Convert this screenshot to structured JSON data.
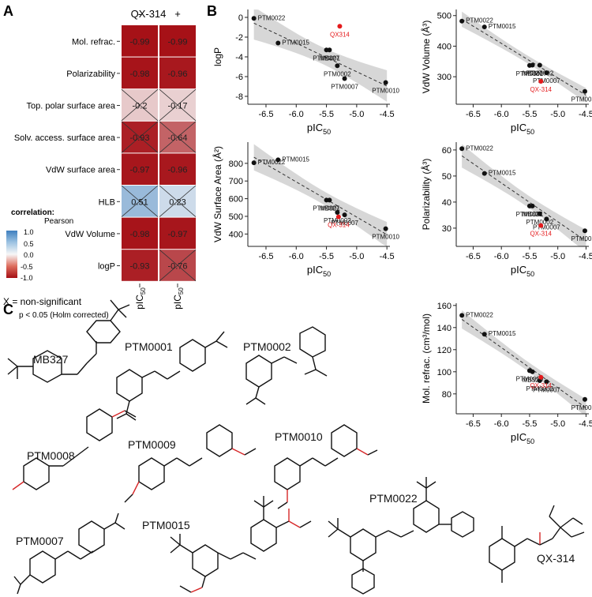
{
  "panels": {
    "a": "A",
    "b": "B",
    "c": "C"
  },
  "heatmap": {
    "header": "QX-314",
    "col_signs": [
      "-",
      "+"
    ],
    "rows": [
      "Mol. refrac.",
      "Polarizability",
      "Top. polar surface area",
      "Solv. access. surface area",
      "VdW surface area",
      "HLB",
      "VdW Volume",
      "logP"
    ],
    "values_minus": [
      "-0.99",
      "-0.98",
      "-0.2",
      "-0.93",
      "-0.97",
      "0.51",
      "-0.98",
      "-0.93"
    ],
    "values_plus": [
      "-0.99",
      "-0.96",
      "-0.17",
      "-0.64",
      "-0.96",
      "0.23",
      "-0.97",
      "-0.76"
    ],
    "nonsig_minus": [
      false,
      false,
      true,
      true,
      false,
      true,
      false,
      false
    ],
    "nonsig_plus": [
      false,
      false,
      true,
      true,
      false,
      true,
      false,
      true
    ],
    "xlabel": "pIC",
    "xlabel_sub": "50"
  },
  "legend": {
    "title": "correlation:",
    "subtitle": "Pearson",
    "ticks": [
      "1.0",
      "0.5",
      "0.0",
      "-0.5",
      "-1.0"
    ],
    "note": "X = non-significant",
    "pnote": "p < 0.05 (Holm corrected)"
  },
  "colors": {
    "neg": "#a50f15",
    "pos": "#4a86c2",
    "highlight": "#e41a1c",
    "ci": "#d3d3d3"
  },
  "chart_data": [
    {
      "type": "scatter",
      "ylabel": "logP",
      "xlabel": "pIC50",
      "xlim": [
        -6.8,
        -4.45
      ],
      "ylim": [
        -8.8,
        0.8
      ],
      "yticks": [
        "0",
        "-2",
        "-4",
        "-6",
        "-8"
      ],
      "xticks": [
        "-6.5",
        "-6.0",
        "-5.5",
        "-5.0",
        "-4.5"
      ],
      "points": [
        {
          "label": "PTM0022",
          "x": -6.7,
          "y": -0.1
        },
        {
          "label": "PTM0015",
          "x": -6.3,
          "y": -2.6
        },
        {
          "label": "PTM0001",
          "x": -5.5,
          "y": -3.3
        },
        {
          "label": "MB327",
          "x": -5.45,
          "y": -3.3
        },
        {
          "label": "PTM0002",
          "x": -5.32,
          "y": -4.9
        },
        {
          "label": "PTM0007",
          "x": -5.2,
          "y": -6.2
        },
        {
          "label": "PTM0010",
          "x": -4.52,
          "y": -6.6
        },
        {
          "label": "QX314",
          "x": -5.28,
          "y": -0.9,
          "highlight": true
        }
      ]
    },
    {
      "type": "scatter",
      "ylabel": "VdW Volume (Å³)",
      "xlabel": "pIC50",
      "xlim": [
        -6.8,
        -4.45
      ],
      "ylim": [
        210,
        520
      ],
      "yticks": [
        "500",
        "400",
        "300"
      ],
      "xticks": [
        "-6.5",
        "-6.0",
        "-5.5",
        "-5.0",
        "-4.5"
      ],
      "points": [
        {
          "label": "PTM0022",
          "x": -6.7,
          "y": 482
        },
        {
          "label": "PTM0015",
          "x": -6.3,
          "y": 463
        },
        {
          "label": "PTM0001",
          "x": -5.5,
          "y": 337
        },
        {
          "label": "PTM0002",
          "x": -5.32,
          "y": 338
        },
        {
          "label": "MB327",
          "x": -5.45,
          "y": 338
        },
        {
          "label": "PTM0007",
          "x": -5.2,
          "y": 313
        },
        {
          "label": "PTM0010",
          "x": -4.52,
          "y": 252
        },
        {
          "label": "QX-314",
          "x": -5.3,
          "y": 285,
          "highlight": true
        }
      ]
    },
    {
      "type": "scatter",
      "ylabel": "VdW Surface Area (Å²)",
      "xlabel": "pIC50",
      "xlim": [
        -6.8,
        -4.45
      ],
      "ylim": [
        330,
        920
      ],
      "yticks": [
        "800",
        "700",
        "600",
        "500",
        "400"
      ],
      "xticks": [
        "-6.5",
        "-6.0",
        "-5.5",
        "-5.0",
        "-4.5"
      ],
      "points": [
        {
          "label": "PTM0015",
          "x": -6.3,
          "y": 820
        },
        {
          "label": "PTM0022",
          "x": -6.7,
          "y": 803
        },
        {
          "label": "PTM0001",
          "x": -5.5,
          "y": 592
        },
        {
          "label": "MB327",
          "x": -5.45,
          "y": 592
        },
        {
          "label": "PTM0002",
          "x": -5.32,
          "y": 522
        },
        {
          "label": "PTM0007",
          "x": -5.2,
          "y": 508
        },
        {
          "label": "PTM0010",
          "x": -4.52,
          "y": 430
        },
        {
          "label": "QX-314",
          "x": -5.3,
          "y": 497,
          "highlight": true
        }
      ]
    },
    {
      "type": "scatter",
      "ylabel": "Polarizability (Å³)",
      "xlabel": "pIC50",
      "xlim": [
        -6.8,
        -4.45
      ],
      "ylim": [
        23,
        63
      ],
      "yticks": [
        "60",
        "50",
        "40",
        "30"
      ],
      "xticks": [
        "-6.5",
        "-6.0",
        "-5.5",
        "-5.0",
        "-4.5"
      ],
      "points": [
        {
          "label": "PTM0022",
          "x": -6.7,
          "y": 60.5
        },
        {
          "label": "PTM0015",
          "x": -6.3,
          "y": 51
        },
        {
          "label": "PTM0001",
          "x": -5.5,
          "y": 38.5
        },
        {
          "label": "MB327",
          "x": -5.45,
          "y": 38.5
        },
        {
          "label": "PTM0002",
          "x": -5.32,
          "y": 35.5
        },
        {
          "label": "PTM0007",
          "x": -5.2,
          "y": 33.5
        },
        {
          "label": "PTM0010",
          "x": -4.52,
          "y": 29
        },
        {
          "label": "QX-314",
          "x": -5.3,
          "y": 31,
          "highlight": true
        }
      ]
    },
    {
      "type": "scatter",
      "ylabel": "Mol. refrac. (cm³/mol)",
      "xlabel": "pIC50",
      "xlim": [
        -6.8,
        -4.45
      ],
      "ylim": [
        62,
        162
      ],
      "yticks": [
        "160",
        "140",
        "120",
        "100",
        "80"
      ],
      "xticks": [
        "-6.5",
        "-6.0",
        "-5.5",
        "-5.0",
        "-4.5"
      ],
      "points": [
        {
          "label": "PTM0022",
          "x": -6.7,
          "y": 151
        },
        {
          "label": "PTM0015",
          "x": -6.3,
          "y": 134
        },
        {
          "label": "PTM0009",
          "x": -5.5,
          "y": 101
        },
        {
          "label": "MB327",
          "x": -5.45,
          "y": 100
        },
        {
          "label": "PTM0002",
          "x": -5.32,
          "y": 92
        },
        {
          "label": "PTM0007",
          "x": -5.2,
          "y": 91
        },
        {
          "label": "PTM0010",
          "x": -4.52,
          "y": 75
        },
        {
          "label": "QX-314",
          "x": -5.3,
          "y": 95,
          "highlight": true
        }
      ]
    }
  ],
  "compounds": [
    {
      "name": "MB327"
    },
    {
      "name": "PTM0001"
    },
    {
      "name": "PTM0002"
    },
    {
      "name": "PTM0008"
    },
    {
      "name": "PTM0009"
    },
    {
      "name": "PTM0010"
    },
    {
      "name": "PTM0007"
    },
    {
      "name": "PTM0015"
    },
    {
      "name": "PTM0022"
    },
    {
      "name": "QX-314"
    }
  ]
}
